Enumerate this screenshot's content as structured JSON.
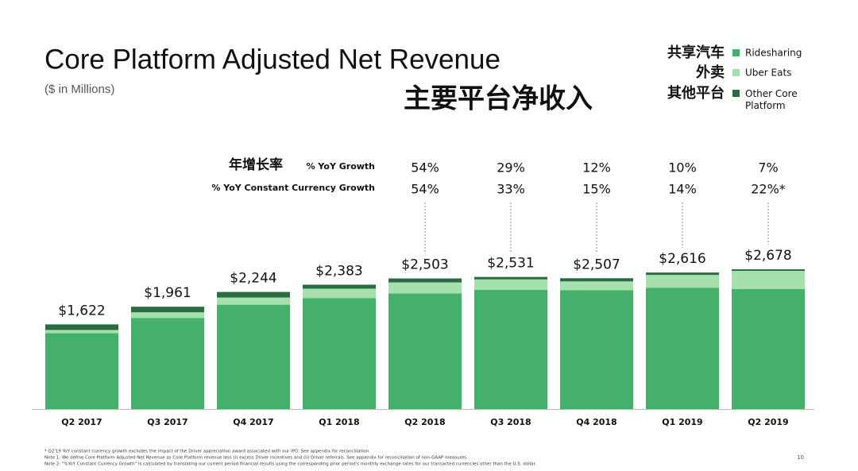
{
  "chart_data": {
    "type": "stacked_bar",
    "title": "Core Platform Adjusted Net Revenue",
    "title_cn": "主要平台净收入",
    "subtitle": "($ in Millions)",
    "categories": [
      "Q2 2017",
      "Q3 2017",
      "Q4 2017",
      "Q1 2018",
      "Q2 2018",
      "Q3 2018",
      "Q4 2018",
      "Q1 2019",
      "Q2 2019"
    ],
    "series": [
      {
        "name": "Ridesharing",
        "name_cn": "共享汽车",
        "color": "#45b06c",
        "values": [
          1455,
          1747,
          2000,
          2124,
          2214,
          2287,
          2279,
          2326,
          2298
        ]
      },
      {
        "name": "Uber Eats",
        "name_cn": "外卖",
        "color": "#a6e0ad",
        "values": [
          60,
          107,
          137,
          183,
          213,
          198,
          167,
          244,
          350
        ]
      },
      {
        "name": "Other Core Platform",
        "name_cn": "其他平台",
        "color": "#2c6a44",
        "values": [
          107,
          107,
          107,
          76,
          76,
          46,
          61,
          46,
          30
        ]
      }
    ],
    "totals": [
      1622,
      1961,
      2244,
      2383,
      2503,
      2531,
      2507,
      2616,
      2678
    ],
    "total_labels": [
      "$1,622",
      "$1,961",
      "$2,244",
      "$2,383",
      "$2,503",
      "$2,531",
      "$2,507",
      "$2,616",
      "$2,678"
    ],
    "growth_label_cn": "年增长率",
    "yoy_growth_label": "% YoY Growth",
    "cc_growth_label": "% YoY Constant Currency Growth",
    "yoy_growth": [
      null,
      null,
      null,
      null,
      "54%",
      "29%",
      "12%",
      "10%",
      "7%"
    ],
    "cc_growth": [
      null,
      null,
      null,
      null,
      "54%",
      "33%",
      "15%",
      "14%",
      "22%*"
    ],
    "footnotes": [
      "* Q2'19 YoY constant currency growth excludes the impact of the Driver appreciation award associated with our IPO. See appendix for reconciliation.",
      "Note 1: We define Core Platform Adjusted Net Revenue as Core Platform revenue less (i) excess Driver incentives and (ii) Driver referrals. See appendix for reconciliation of non-GAAP measures.",
      "Note 2: \"%YoY Constant Currency Growth\" is calculated by translating our current period financial results using the corresponding prior period's monthly exchange rates for our transacted currencies other than the U.S. dollar."
    ],
    "page_number": "10"
  }
}
